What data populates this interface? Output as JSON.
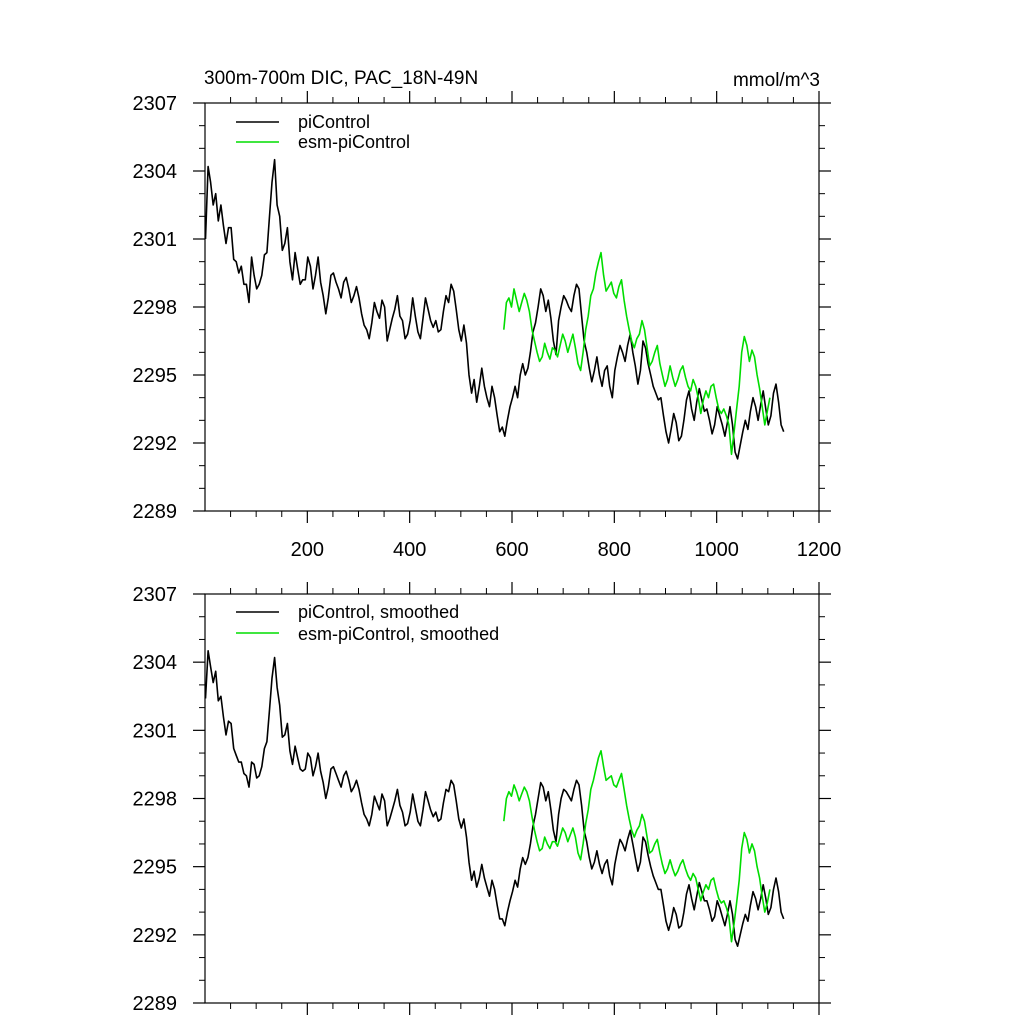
{
  "chart_data": [
    {
      "type": "line",
      "title": "300m-700m DIC, PAC_18N-49N",
      "units": "mmol/m^3",
      "xlim": [
        0,
        1200
      ],
      "ylim": [
        2289,
        2307
      ],
      "x_ticks": [
        200,
        400,
        600,
        800,
        1000,
        1200
      ],
      "y_ticks": [
        2289,
        2292,
        2295,
        2298,
        2301,
        2304,
        2307
      ],
      "x_tick_labels_visible": true,
      "legend_position": "top-left",
      "series": [
        {
          "name": "piControl",
          "color": "#000000",
          "x_start": 1,
          "x_step": 5,
          "values": [
            2301.0,
            2304.2,
            2303.5,
            2302.5,
            2303.0,
            2301.8,
            2302.5,
            2301.6,
            2300.8,
            2301.5,
            2301.5,
            2300.1,
            2300.0,
            2299.5,
            2299.8,
            2299.0,
            2299.0,
            2298.2,
            2300.2,
            2299.4,
            2298.8,
            2299.0,
            2299.4,
            2300.3,
            2300.4,
            2302.0,
            2303.5,
            2304.5,
            2302.5,
            2302.0,
            2300.5,
            2300.8,
            2301.5,
            2300.0,
            2299.2,
            2300.4,
            2299.7,
            2299.0,
            2299.2,
            2299.2,
            2300.2,
            2299.8,
            2298.8,
            2299.4,
            2300.2,
            2299.1,
            2298.5,
            2297.7,
            2298.4,
            2299.4,
            2299.5,
            2299.1,
            2298.8,
            2298.4,
            2299.1,
            2299.3,
            2298.8,
            2298.2,
            2298.5,
            2298.9,
            2298.4,
            2297.7,
            2297.2,
            2297.0,
            2296.6,
            2297.3,
            2298.2,
            2297.8,
            2297.5,
            2298.3,
            2298.0,
            2296.5,
            2297.0,
            2297.5,
            2297.9,
            2298.5,
            2297.6,
            2297.4,
            2296.6,
            2296.8,
            2297.4,
            2298.4,
            2297.6,
            2296.9,
            2296.6,
            2297.5,
            2298.4,
            2297.9,
            2297.4,
            2297.1,
            2297.4,
            2296.9,
            2297.0,
            2297.8,
            2298.5,
            2298.2,
            2299.0,
            2298.7,
            2297.9,
            2297.0,
            2296.5,
            2297.2,
            2296.4,
            2295.0,
            2294.2,
            2294.8,
            2293.8,
            2294.5,
            2295.3,
            2294.5,
            2294.0,
            2293.6,
            2294.5,
            2294.0,
            2293.2,
            2292.5,
            2292.7,
            2292.3,
            2293.0,
            2293.6,
            2294.0,
            2294.5,
            2294.0,
            2295.0,
            2295.5,
            2295.0,
            2295.3,
            2296.0,
            2296.9,
            2297.3,
            2298.0,
            2298.8,
            2298.5,
            2297.8,
            2298.3,
            2297.5,
            2296.5,
            2295.9,
            2297.4,
            2298.0,
            2298.5,
            2298.3,
            2298.0,
            2297.8,
            2298.5,
            2299.0,
            2298.8,
            2297.6,
            2296.5,
            2296.0,
            2295.3,
            2294.7,
            2295.2,
            2295.8,
            2295.0,
            2294.5,
            2295.2,
            2295.4,
            2294.5,
            2294.0,
            2295.2,
            2295.8,
            2296.3,
            2296.0,
            2295.6,
            2296.3,
            2296.8,
            2296.0,
            2295.4,
            2294.6,
            2295.2,
            2296.5,
            2296.2,
            2295.5,
            2295.0,
            2294.5,
            2294.2,
            2293.9,
            2294.0,
            2293.2,
            2292.5,
            2292.0,
            2292.6,
            2293.3,
            2292.9,
            2292.1,
            2292.3,
            2293.0,
            2293.9,
            2294.3,
            2293.5,
            2293.0,
            2293.8,
            2294.4,
            2293.9,
            2293.4,
            2293.5,
            2293.0,
            2292.4,
            2292.8,
            2293.6,
            2293.2,
            2292.8,
            2292.3,
            2292.9,
            2293.6,
            2292.8,
            2291.6,
            2291.3,
            2291.9,
            2292.5,
            2293.0,
            2292.6,
            2293.4,
            2294.0,
            2293.6,
            2293.0,
            2293.7,
            2294.3,
            2293.5,
            2292.8,
            2293.2,
            2294.2,
            2294.6,
            2293.8,
            2292.8,
            2292.5
          ]
        },
        {
          "name": "esm-piControl",
          "color": "#00dd00",
          "x_start": 584,
          "x_step": 5,
          "values": [
            2297.0,
            2298.2,
            2298.4,
            2298.0,
            2298.8,
            2298.3,
            2297.8,
            2298.2,
            2298.6,
            2298.3,
            2297.8,
            2297.0,
            2296.5,
            2296.0,
            2295.6,
            2295.8,
            2296.4,
            2296.0,
            2295.7,
            2296.2,
            2296.1,
            2295.8,
            2296.3,
            2296.8,
            2296.5,
            2296.0,
            2296.4,
            2296.8,
            2296.2,
            2295.5,
            2295.2,
            2296.0,
            2297.0,
            2297.6,
            2298.5,
            2298.8,
            2299.5,
            2300.0,
            2300.4,
            2299.4,
            2298.7,
            2298.9,
            2299.1,
            2298.6,
            2298.4,
            2298.9,
            2299.2,
            2298.3,
            2297.6,
            2297.0,
            2296.5,
            2296.2,
            2296.6,
            2296.8,
            2297.4,
            2297.0,
            2296.2,
            2295.4,
            2295.6,
            2296.0,
            2296.3,
            2295.5,
            2295.0,
            2294.5,
            2294.8,
            2295.4,
            2294.9,
            2294.5,
            2294.8,
            2295.2,
            2295.4,
            2294.9,
            2294.5,
            2294.3,
            2294.8,
            2294.5,
            2294.0,
            2293.3,
            2293.9,
            2294.3,
            2294.0,
            2294.5,
            2294.6,
            2294.0,
            2293.5,
            2293.3,
            2293.5,
            2293.2,
            2292.8,
            2291.5,
            2292.5,
            2293.5,
            2294.5,
            2296.0,
            2296.7,
            2296.3,
            2295.6,
            2296.1,
            2295.8,
            2295.0,
            2294.4,
            2293.6,
            2292.8,
            2293.4,
            2294.0
          ]
        }
      ],
      "legend": [
        "piControl",
        "esm-piControl"
      ]
    },
    {
      "type": "line",
      "title": "",
      "xlim": [
        0,
        1200
      ],
      "ylim": [
        2289,
        2307
      ],
      "x_ticks": [
        200,
        400,
        600,
        800,
        1000,
        1200
      ],
      "y_ticks": [
        2289,
        2292,
        2295,
        2298,
        2301,
        2304,
        2307
      ],
      "x_tick_labels_visible": false,
      "legend_position": "top-left",
      "series": [
        {
          "name": "piControl, smoothed",
          "color": "#000000",
          "x_start": 1,
          "x_step": 5,
          "values": [
            2302.4,
            2304.5,
            2303.8,
            2303.1,
            2303.6,
            2302.3,
            2302.5,
            2301.6,
            2300.8,
            2301.4,
            2301.3,
            2300.2,
            2299.9,
            2299.6,
            2299.6,
            2299.1,
            2299.0,
            2298.5,
            2299.6,
            2299.5,
            2298.9,
            2299.0,
            2299.4,
            2300.2,
            2300.5,
            2301.9,
            2303.3,
            2304.2,
            2302.9,
            2302.1,
            2300.7,
            2300.8,
            2301.3,
            2300.1,
            2299.5,
            2300.3,
            2299.8,
            2299.3,
            2299.2,
            2299.3,
            2300.0,
            2299.8,
            2299.0,
            2299.4,
            2300.0,
            2299.2,
            2298.7,
            2298.0,
            2298.5,
            2299.3,
            2299.4,
            2299.1,
            2298.8,
            2298.5,
            2299.0,
            2299.2,
            2298.8,
            2298.3,
            2298.5,
            2298.8,
            2298.4,
            2297.8,
            2297.3,
            2297.1,
            2296.8,
            2297.3,
            2298.1,
            2297.8,
            2297.5,
            2298.2,
            2297.9,
            2296.8,
            2297.1,
            2297.5,
            2297.9,
            2298.4,
            2297.7,
            2297.4,
            2296.8,
            2296.9,
            2297.4,
            2298.2,
            2297.6,
            2297.0,
            2296.8,
            2297.5,
            2298.3,
            2297.9,
            2297.5,
            2297.2,
            2297.4,
            2297.0,
            2297.1,
            2297.8,
            2298.4,
            2298.3,
            2298.8,
            2298.6,
            2297.9,
            2297.1,
            2296.7,
            2297.1,
            2296.3,
            2295.2,
            2294.4,
            2294.8,
            2294.1,
            2294.5,
            2295.1,
            2294.5,
            2294.1,
            2293.7,
            2294.4,
            2294.0,
            2293.3,
            2292.7,
            2292.7,
            2292.4,
            2293.0,
            2293.5,
            2293.9,
            2294.4,
            2294.1,
            2294.9,
            2295.4,
            2295.1,
            2295.4,
            2296.0,
            2296.8,
            2297.3,
            2298.0,
            2298.7,
            2298.5,
            2297.9,
            2298.3,
            2297.5,
            2296.6,
            2296.1,
            2297.3,
            2298.0,
            2298.4,
            2298.3,
            2298.1,
            2297.9,
            2298.4,
            2298.8,
            2298.6,
            2297.7,
            2296.6,
            2296.1,
            2295.4,
            2294.9,
            2295.2,
            2295.7,
            2295.1,
            2294.7,
            2295.1,
            2295.3,
            2294.6,
            2294.2,
            2295.1,
            2295.7,
            2296.2,
            2296.0,
            2295.7,
            2296.2,
            2296.6,
            2296.0,
            2295.4,
            2294.8,
            2295.2,
            2296.3,
            2296.1,
            2295.5,
            2295.0,
            2294.6,
            2294.3,
            2294.0,
            2294.0,
            2293.3,
            2292.6,
            2292.2,
            2292.6,
            2293.2,
            2292.9,
            2292.3,
            2292.4,
            2293.0,
            2293.8,
            2294.2,
            2293.6,
            2293.1,
            2293.7,
            2294.3,
            2293.9,
            2293.5,
            2293.5,
            2293.1,
            2292.6,
            2292.8,
            2293.5,
            2293.2,
            2292.8,
            2292.4,
            2292.9,
            2293.5,
            2292.9,
            2291.8,
            2291.5,
            2292.0,
            2292.5,
            2292.9,
            2292.6,
            2293.3,
            2293.9,
            2293.6,
            2293.1,
            2293.6,
            2294.2,
            2293.6,
            2292.9,
            2293.2,
            2294.0,
            2294.5,
            2293.9,
            2293.0,
            2292.7
          ]
        },
        {
          "name": "esm-piControl, smoothed",
          "color": "#00dd00",
          "x_start": 584,
          "x_step": 5,
          "values": [
            2297.0,
            2298.0,
            2298.3,
            2298.1,
            2298.6,
            2298.3,
            2297.9,
            2298.2,
            2298.5,
            2298.3,
            2297.9,
            2297.2,
            2296.6,
            2296.1,
            2295.7,
            2295.8,
            2296.3,
            2296.0,
            2295.8,
            2296.1,
            2296.1,
            2295.9,
            2296.3,
            2296.7,
            2296.5,
            2296.1,
            2296.4,
            2296.7,
            2296.3,
            2295.6,
            2295.3,
            2296.0,
            2296.9,
            2297.5,
            2298.4,
            2298.8,
            2299.3,
            2299.8,
            2300.1,
            2299.4,
            2298.8,
            2298.9,
            2299.0,
            2298.6,
            2298.5,
            2298.8,
            2299.1,
            2298.4,
            2297.7,
            2297.1,
            2296.6,
            2296.3,
            2296.6,
            2296.8,
            2297.3,
            2297.0,
            2296.3,
            2295.6,
            2295.7,
            2296.0,
            2296.2,
            2295.6,
            2295.1,
            2294.7,
            2294.9,
            2295.3,
            2294.9,
            2294.6,
            2294.8,
            2295.1,
            2295.3,
            2294.9,
            2294.6,
            2294.4,
            2294.7,
            2294.5,
            2294.0,
            2293.5,
            2293.9,
            2294.2,
            2294.0,
            2294.4,
            2294.5,
            2294.0,
            2293.6,
            2293.4,
            2293.5,
            2293.2,
            2292.8,
            2291.7,
            2292.5,
            2293.4,
            2294.4,
            2295.8,
            2296.5,
            2296.2,
            2295.6,
            2296.0,
            2295.7,
            2295.0,
            2294.5,
            2293.7,
            2293.0,
            2293.4,
            2294.0
          ]
        }
      ],
      "legend": [
        "piControl, smoothed",
        "esm-piControl, smoothed"
      ]
    }
  ]
}
